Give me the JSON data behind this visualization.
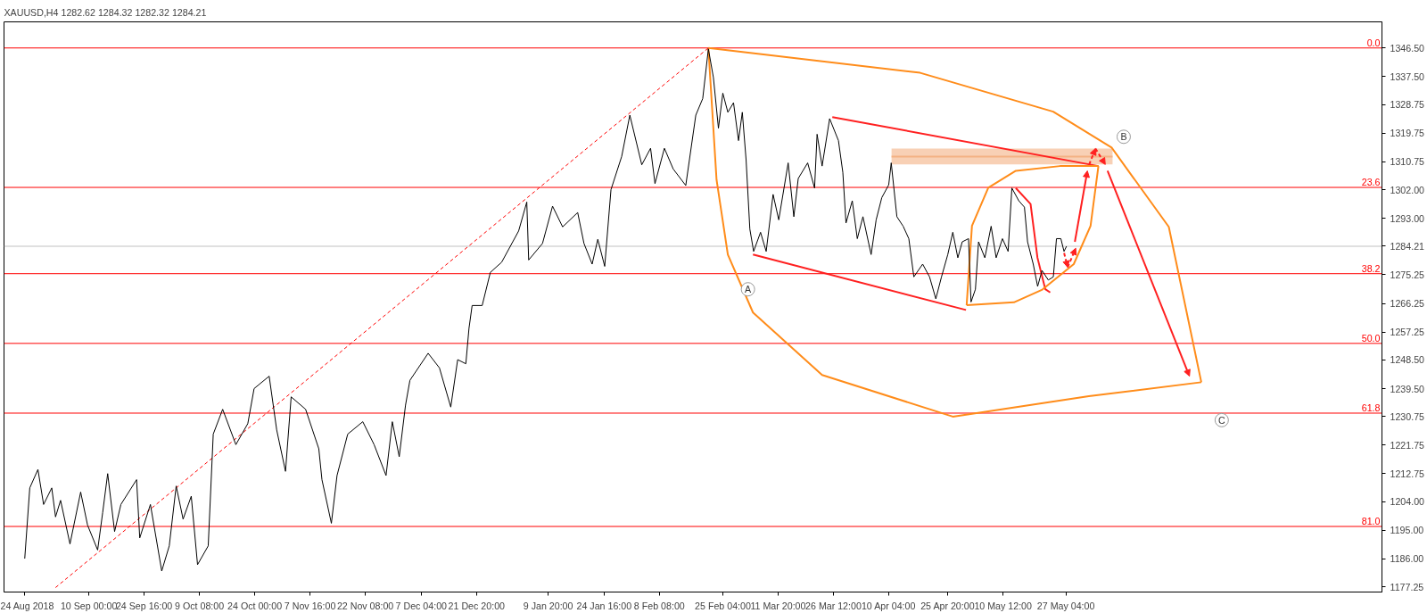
{
  "chart_data": {
    "type": "line",
    "title": "XAUUSD,H4  1282.62 1284.32 1282.32 1284.21",
    "xlim": [
      "2018-08-18T12:00",
      "2019-08-19"
    ],
    "xticks": [
      {
        "value": "2018-08-24",
        "label": "24 Aug 2018"
      },
      {
        "value": "2018-09-10T00:00",
        "label": "10 Sep 00:00"
      },
      {
        "value": "2018-09-24T16:00",
        "label": "24 Sep 16:00"
      },
      {
        "value": "2018-10-09T08:00",
        "label": "9 Oct 08:00"
      },
      {
        "value": "2018-10-24T00:00",
        "label": "24 Oct 00:00"
      },
      {
        "value": "2018-11-07T16:00",
        "label": "7 Nov 16:00"
      },
      {
        "value": "2018-11-22T08:00",
        "label": "22 Nov 08:00"
      },
      {
        "value": "2018-12-07T04:00",
        "label": "7 Dec 04:00"
      },
      {
        "value": "2018-12-21T20:00",
        "label": "21 Dec 20:00"
      },
      {
        "value": "2019-01-09T20:00",
        "label": "9 Jan 20:00"
      },
      {
        "value": "2019-01-24T16:00",
        "label": "24 Jan 16:00"
      },
      {
        "value": "2019-02-08T08:00",
        "label": "8 Feb 08:00"
      },
      {
        "value": "2019-02-25T04:00",
        "label": "25 Feb 04:00"
      },
      {
        "value": "2019-03-11T20:00",
        "label": "11 Mar 20:00"
      },
      {
        "value": "2019-03-26T12:00",
        "label": "26 Mar 12:00"
      },
      {
        "value": "2019-04-10T04:00",
        "label": "10 Apr 04:00"
      },
      {
        "value": "2019-04-25T20:00",
        "label": "25 Apr 20:00"
      },
      {
        "value": "2019-05-10T12:00",
        "label": "10 May 12:00"
      },
      {
        "value": "2019-05-27T04:00",
        "label": "27 May 04:00"
      }
    ],
    "ylim": [
      1175.6,
      1354.7
    ],
    "yticks": [
      {
        "value": 1177.25,
        "label": "1177.25"
      },
      {
        "value": 1186,
        "label": "1186.00"
      },
      {
        "value": 1195,
        "label": "1195.00"
      },
      {
        "value": 1204,
        "label": "1204.00"
      },
      {
        "value": 1212.75,
        "label": "1212.75"
      },
      {
        "value": 1221.75,
        "label": "1221.75"
      },
      {
        "value": 1230.75,
        "label": "1230.75"
      },
      {
        "value": 1239.5,
        "label": "1239.50"
      },
      {
        "value": 1248.5,
        "label": "1248.50"
      },
      {
        "value": 1257.25,
        "label": "1257.25"
      },
      {
        "value": 1266.25,
        "label": "1266.25"
      },
      {
        "value": 1275.25,
        "label": "1275.25"
      },
      {
        "value": 1284.21,
        "label": "1284.21"
      },
      {
        "value": 1293,
        "label": "1293.00"
      },
      {
        "value": 1302,
        "label": "1302.00"
      },
      {
        "value": 1310.75,
        "label": "1310.75"
      },
      {
        "value": 1319.75,
        "label": "1319.75"
      },
      {
        "value": 1328.75,
        "label": "1328.75"
      },
      {
        "value": 1337.5,
        "label": "1337.50"
      },
      {
        "value": 1346.5,
        "label": "1346.50"
      }
    ],
    "grid": false,
    "series": [
      {
        "color": "#000000",
        "line_style": "solid",
        "x": [
          "2018-08-24T00:00",
          "2018-08-25T08:00",
          "2018-08-27T12:00",
          "2018-08-29T00:00",
          "2018-08-31T04:00",
          "2018-09-01T04:00",
          "2018-09-02T12:00",
          "2018-09-05T00:00",
          "2018-09-07T20:00",
          "2018-09-09T16:00",
          "2018-09-12T08:00",
          "2018-09-13T16:00",
          "2018-09-15T00:00",
          "2018-09-16T20:00",
          "2018-09-18T12:00",
          "2018-09-22T16:00",
          "2018-09-23T12:00",
          "2018-09-26T08:00",
          "2018-09-29T08:00",
          "2018-10-01T08:00",
          "2018-10-03T04:00",
          "2018-10-05T00:00",
          "2018-10-07T04:00",
          "2018-10-08T20:00",
          "2018-10-11T16:00",
          "2018-10-13T00:00",
          "2018-10-15T12:00",
          "2018-10-19T00:00",
          "2018-10-22T04:00",
          "2018-10-23T20:00",
          "2018-10-27T20:00",
          "2018-10-29T20:00",
          "2018-11-01T04:00",
          "2018-11-02T16:00",
          "2018-11-06T12:00",
          "2018-11-10T00:00",
          "2018-11-10T20:00",
          "2018-11-13T08:00",
          "2018-11-14T20:00",
          "2018-11-17T16:00",
          "2018-11-21T16:00",
          "2018-11-24T16:00",
          "2018-11-27T20:00",
          "2018-11-29T12:00",
          "2018-12-01T08:00",
          "2018-12-03T00:00",
          "2018-12-04T04:00",
          "2018-12-09T00:00",
          "2018-12-12T00:00",
          "2018-12-15T00:00",
          "2018-12-16T20:00",
          "2018-12-19T00:00",
          "2018-12-19T20:00",
          "2018-12-20T16:00",
          "2018-12-23T08:00",
          "2018-12-25T12:00",
          "2018-12-28T12:00",
          "2019-01-02T00:00",
          "2019-01-04T04:00",
          "2019-01-04T16:00",
          "2019-01-08T08:00",
          "2019-01-11T00:00",
          "2019-01-13T16:00",
          "2019-01-17T16:00",
          "2019-01-19T08:00",
          "2019-01-21T12:00",
          "2019-01-23T00:00",
          "2019-01-24T20:00",
          "2019-01-26T12:00",
          "2019-01-29T08:00",
          "2019-01-31T12:00",
          "2019-02-03T16:00",
          "2019-02-06T00:00",
          "2019-02-07T04:00",
          "2019-02-09T16:00",
          "2019-02-12T00:00",
          "2019-02-15T08:00",
          "2019-02-18T00:00",
          "2019-02-19T20:00",
          "2019-02-21T08:00",
          "2019-02-22T16:00",
          "2019-02-24T00:00",
          "2019-02-25T04:00",
          "2019-02-26T12:00",
          "2019-02-28T00:00",
          "2019-03-01T08:00",
          "2019-03-02T08:00",
          "2019-03-03T08:00",
          "2019-03-04T08:00",
          "2019-03-05T08:00",
          "2019-03-07T04:00",
          "2019-03-08T16:00",
          "2019-03-10T12:00",
          "2019-03-12T00:00",
          "2019-03-14T12:00",
          "2019-03-16T00:00",
          "2019-03-17T04:00",
          "2019-03-19T16:00",
          "2019-03-21T12:00",
          "2019-03-22T04:00",
          "2019-03-23T12:00",
          "2019-03-25T12:00",
          "2019-03-27T20:00",
          "2019-03-29T00:00",
          "2019-03-29T20:00",
          "2019-03-31T12:00",
          "2019-04-01T20:00",
          "2019-04-03T08:00",
          "2019-04-05T12:00",
          "2019-04-06T20:00",
          "2019-04-08T08:00",
          "2019-04-10T04:00",
          "2019-04-10T20:00",
          "2019-04-12T08:00",
          "2019-04-14T00:00",
          "2019-04-15T12:00",
          "2019-04-16T20:00",
          "2019-04-19T04:00",
          "2019-04-21T00:00",
          "2019-04-22T16:00",
          "2019-04-24T04:00",
          "2019-04-25T20:00",
          "2019-04-27T04:00",
          "2019-04-28T12:00",
          "2019-04-29T16:00",
          "2019-05-01T08:00",
          "2019-05-02T00:00",
          "2019-05-03T04:00",
          "2019-05-04T00:00",
          "2019-05-05T16:00",
          "2019-05-07T08:00",
          "2019-05-08T16:00",
          "2019-05-10T08:00",
          "2019-05-11T20:00",
          "2019-05-12T20:00",
          "2019-05-14T16:00",
          "2019-05-16T04:00",
          "2019-05-17T00:00",
          "2019-05-18T12:00",
          "2019-05-19T16:00",
          "2019-05-20T20:00",
          "2019-05-22T12:00",
          "2019-05-23T20:00",
          "2019-05-24T16:00",
          "2019-05-25T20:00",
          "2019-05-26T16:00",
          "2019-05-27T08:00"
        ],
        "values": [
          1186.1,
          1208.3,
          1214.1,
          1203.1,
          1208.3,
          1199.2,
          1204.4,
          1190.7,
          1207.0,
          1196.6,
          1188.8,
          1200.5,
          1212.8,
          1194.6,
          1203.1,
          1210.9,
          1192.6,
          1203.1,
          1182.2,
          1190.1,
          1208.9,
          1198.5,
          1205.7,
          1184.2,
          1190.1,
          1225.2,
          1233.0,
          1221.9,
          1228.5,
          1239.5,
          1243.4,
          1226.5,
          1213.5,
          1236.9,
          1233.0,
          1220.6,
          1210.9,
          1197.2,
          1212.2,
          1225.2,
          1229.1,
          1221.9,
          1212.2,
          1229.1,
          1218.1,
          1234.3,
          1242.1,
          1250.6,
          1246.0,
          1233.7,
          1248.6,
          1247.3,
          1258.4,
          1265.6,
          1265.6,
          1276.0,
          1279.2,
          1289.0,
          1298.1,
          1279.9,
          1285.1,
          1296.8,
          1290.3,
          1294.8,
          1285.1,
          1278.6,
          1286.4,
          1277.9,
          1302.0,
          1312.4,
          1325.4,
          1309.8,
          1315.0,
          1303.9,
          1315.0,
          1308.5,
          1303.3,
          1325.4,
          1330.6,
          1346.2,
          1337.2,
          1321.3,
          1332.3,
          1326.3,
          1329.3,
          1317.4,
          1326.3,
          1311.4,
          1289.6,
          1282.6,
          1288.6,
          1282.6,
          1300.5,
          1292.5,
          1310.4,
          1293.5,
          1305.5,
          1310.4,
          1302.5,
          1319.4,
          1309.4,
          1324.3,
          1317.4,
          1307.4,
          1291.5,
          1298.5,
          1286.6,
          1293.5,
          1281.6,
          1292.5,
          1299.5,
          1303.5,
          1310.4,
          1293.5,
          1290.5,
          1286.6,
          1274.6,
          1278.6,
          1274.6,
          1267.7,
          1274.6,
          1281.6,
          1288.6,
          1280.6,
          1285.6,
          1286.6,
          1266.7,
          1270.7,
          1285.6,
          1280.6,
          1290.5,
          1280.6,
          1286.6,
          1282.6,
          1302.5,
          1298.5,
          1296.5,
          1285.6,
          1278.6,
          1271.6,
          1276.6,
          1273.6,
          1274.6,
          1286.6,
          1286.6,
          1282.6,
          1284.21
        ]
      },
      {
        "color": "#ff0000",
        "line_style": "dashed",
        "x": [
          "2018-09-01T04:00",
          "2019-02-21T08:00"
        ],
        "values": [
          1177,
          1346.5
        ]
      },
      {
        "color": "#ff8c1a",
        "line_style": "solid",
        "x": [
          "2019-02-21T08:00",
          "2019-04-18T12:00",
          "2019-05-23T19:00",
          "2019-06-08T07:00",
          "2019-06-23T11:00",
          "2019-07-02T02:00"
        ],
        "values": [
          1346.5,
          1338.7,
          1326.5,
          1315.2,
          1290.3,
          1241.5
        ]
      },
      {
        "color": "#ff8c1a",
        "line_style": "solid",
        "x": [
          "2019-02-21T08:00",
          "2019-02-23T12:00",
          "2019-02-26T12:00",
          "2019-03-05T04:00",
          "2019-03-23T12:00",
          "2019-04-27T04:00",
          "2019-06-02T06:00",
          "2019-07-02T02:00"
        ],
        "values": [
          1346.5,
          1305.1,
          1281.6,
          1263.4,
          1243.8,
          1230.7,
          1237.1,
          1241.5
        ]
      },
      {
        "color": "#ff8c1a",
        "line_style": "solid",
        "x": [
          "2019-04-30T20:00",
          "2019-05-02T06:00",
          "2019-05-06T14:00",
          "2019-05-13T21:00",
          "2019-05-25T14:00",
          "2019-06-04T19:00"
        ],
        "values": [
          1265.7,
          1290.6,
          1302.6,
          1307.9,
          1309.4,
          1309.4
        ]
      },
      {
        "color": "#ff8c1a",
        "line_style": "solid",
        "x": [
          "2019-04-30T20:00",
          "2019-05-13T09:00",
          "2019-05-20T22:00",
          "2019-05-29T06:00",
          "2019-06-02T17:00",
          "2019-06-04T19:00"
        ],
        "values": [
          1265.7,
          1266.6,
          1270.6,
          1278.6,
          1290.6,
          1309.4
        ]
      },
      {
        "color": "#ff2020",
        "line_style": "solid",
        "x": [
          "2019-05-13T21:00",
          "2019-05-17T19:00",
          "2019-05-19T15:00",
          "2019-05-21T17:00",
          "2019-05-23T00:00"
        ],
        "values": [
          1302.5,
          1297.5,
          1280.6,
          1270.7,
          1269.7
        ]
      },
      {
        "color": "#ff2020",
        "line_style": "solid",
        "x": [
          "2019-03-26T05:00",
          "2019-06-04T19:00"
        ],
        "values": [
          1324.8,
          1309.4
        ]
      },
      {
        "color": "#ff2020",
        "line_style": "solid",
        "x": [
          "2019-03-05T04:00",
          "2019-04-30T16:00"
        ],
        "values": [
          1281.6,
          1264.2
        ]
      },
      {
        "color": "#f4b183",
        "line_style": "solid",
        "x": [
          "2019-04-10T22:00",
          "2019-06-08T13:00"
        ],
        "values": [
          1312.4,
          1312.4
        ],
        "lower": [
          1309.9,
          1309.9
        ],
        "upper": [
          1314.9,
          1314.9
        ]
      }
    ],
    "ref_lines": [
      {
        "axis": "y",
        "value": 1346.5,
        "color": "#ff0000"
      },
      {
        "axis": "y",
        "value": 1302.7,
        "color": "#ff0000"
      },
      {
        "axis": "y",
        "value": 1275.6,
        "color": "#ff0000"
      },
      {
        "axis": "y",
        "value": 1253.7,
        "color": "#ff0000"
      },
      {
        "axis": "y",
        "value": 1231.8,
        "color": "#ff0000"
      },
      {
        "axis": "y",
        "value": 1196.2,
        "color": "#ff0000"
      },
      {
        "axis": "y",
        "value": 1284.21,
        "color": "#c0c0c0"
      }
    ],
    "annotations": [
      {
        "text": "0.0",
        "x": "2019-08-19",
        "y": 1346.5
      },
      {
        "text": "23.6",
        "x": "2019-08-19",
        "y": 1302.7
      },
      {
        "text": "38.2",
        "x": "2019-08-19",
        "y": 1275.6
      },
      {
        "text": "50.0",
        "x": "2019-08-19",
        "y": 1253.7
      },
      {
        "text": "61.8",
        "x": "2019-08-19",
        "y": 1231.8
      },
      {
        "text": "81.0",
        "x": "2019-08-19",
        "y": 1196.2
      },
      {
        "text": "A",
        "x": "2019-03-03T20:00",
        "y": 1270.7
      },
      {
        "text": "B",
        "x": "2019-06-11T12:00",
        "y": 1318.6
      },
      {
        "text": "C",
        "x": "2019-07-07T12:00",
        "y": 1229.6
      }
    ]
  }
}
